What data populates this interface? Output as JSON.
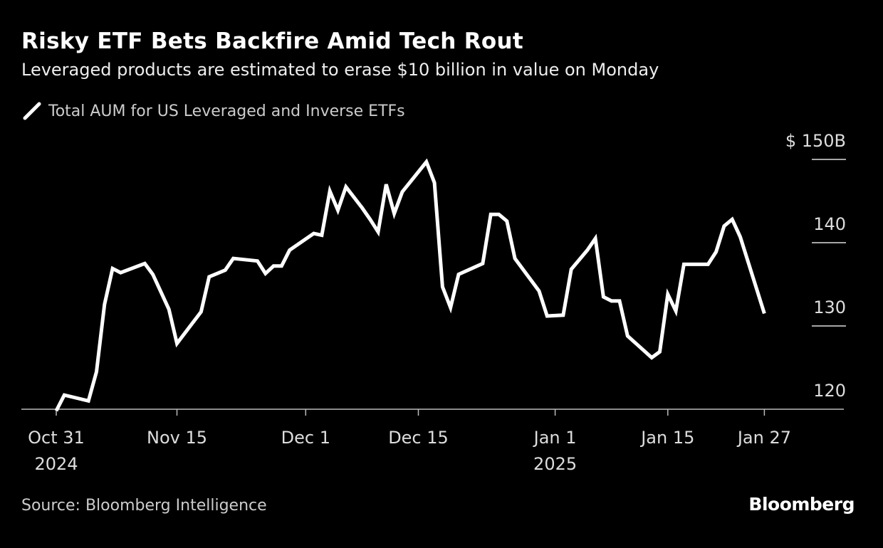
{
  "chart_data": {
    "type": "line",
    "title": "Risky ETF Bets Backfire Amid Tech Rout",
    "subtitle": "Leveraged products are estimated to erase $10 billion in value on Monday",
    "series": [
      {
        "name": "Total AUM for US Leveraged and Inverse ETFs",
        "color": "#ffffff",
        "points": [
          [
            "2024-10-31",
            119.8
          ],
          [
            "2024-11-01",
            121.7
          ],
          [
            "2024-11-04",
            121.0
          ],
          [
            "2024-11-05",
            124.5
          ],
          [
            "2024-11-06",
            132.6
          ],
          [
            "2024-11-07",
            136.9
          ],
          [
            "2024-11-08",
            136.4
          ],
          [
            "2024-11-11",
            137.5
          ],
          [
            "2024-11-12",
            136.2
          ],
          [
            "2024-11-14",
            132.0
          ],
          [
            "2024-11-15",
            127.9
          ],
          [
            "2024-11-18",
            131.7
          ],
          [
            "2024-11-19",
            135.9
          ],
          [
            "2024-11-21",
            136.7
          ],
          [
            "2024-11-22",
            138.1
          ],
          [
            "2024-11-25",
            137.8
          ],
          [
            "2024-11-26",
            136.3
          ],
          [
            "2024-11-27",
            137.2
          ],
          [
            "2024-11-28",
            137.2
          ],
          [
            "2024-11-29",
            139.1
          ],
          [
            "2024-12-02",
            141.1
          ],
          [
            "2024-12-03",
            140.9
          ],
          [
            "2024-12-04",
            146.2
          ],
          [
            "2024-12-05",
            143.9
          ],
          [
            "2024-12-06",
            146.7
          ],
          [
            "2024-12-08",
            144.2
          ],
          [
            "2024-12-09",
            142.8
          ],
          [
            "2024-12-10",
            141.3
          ],
          [
            "2024-12-11",
            147.0
          ],
          [
            "2024-12-12",
            143.5
          ],
          [
            "2024-12-13",
            146.1
          ],
          [
            "2024-12-16",
            149.7
          ],
          [
            "2024-12-17",
            147.2
          ],
          [
            "2024-12-18",
            134.7
          ],
          [
            "2024-12-19",
            132.2
          ],
          [
            "2024-12-20",
            136.2
          ],
          [
            "2024-12-23",
            137.5
          ],
          [
            "2024-12-24",
            143.4
          ],
          [
            "2024-12-25",
            143.4
          ],
          [
            "2024-12-26",
            142.6
          ],
          [
            "2024-12-27",
            138.1
          ],
          [
            "2024-12-30",
            134.2
          ],
          [
            "2024-12-31",
            131.2
          ],
          [
            "2025-01-02",
            131.3
          ],
          [
            "2025-01-03",
            136.8
          ],
          [
            "2025-01-05",
            139.1
          ],
          [
            "2025-01-06",
            140.5
          ],
          [
            "2025-01-07",
            133.5
          ],
          [
            "2025-01-08",
            133.0
          ],
          [
            "2025-01-09",
            133.0
          ],
          [
            "2025-01-10",
            128.8
          ],
          [
            "2025-01-13",
            126.2
          ],
          [
            "2025-01-14",
            126.9
          ],
          [
            "2025-01-15",
            133.8
          ],
          [
            "2025-01-16",
            131.8
          ],
          [
            "2025-01-17",
            137.4
          ],
          [
            "2025-01-20",
            137.4
          ],
          [
            "2025-01-21",
            138.9
          ],
          [
            "2025-01-22",
            142.0
          ],
          [
            "2025-01-23",
            142.8
          ],
          [
            "2025-01-24",
            140.7
          ],
          [
            "2025-01-27",
            131.5
          ]
        ]
      }
    ],
    "ylim": [
      120,
      150
    ],
    "y_ticks": [
      {
        "value": 150,
        "label": "$ 150B"
      },
      {
        "value": 140,
        "label": "140"
      },
      {
        "value": 130,
        "label": "130"
      },
      {
        "value": 120,
        "label": "120"
      }
    ],
    "x_ticks": [
      {
        "date": "2024-10-31",
        "label": "Oct 31",
        "sublabel": "2024"
      },
      {
        "date": "2024-11-15",
        "label": "Nov 15",
        "sublabel": ""
      },
      {
        "date": "2024-12-01",
        "label": "Dec 1",
        "sublabel": ""
      },
      {
        "date": "2024-12-15",
        "label": "Dec 15",
        "sublabel": ""
      },
      {
        "date": "2025-01-01",
        "label": "Jan 1",
        "sublabel": "2025"
      },
      {
        "date": "2025-01-15",
        "label": "Jan 15",
        "sublabel": ""
      },
      {
        "date": "2025-01-27",
        "label": "Jan 27",
        "sublabel": ""
      }
    ],
    "y_axis_side": "right",
    "grid": false,
    "legend_position": "top-left"
  },
  "source": "Source: Bloomberg Intelligence",
  "logo": "Bloomberg"
}
